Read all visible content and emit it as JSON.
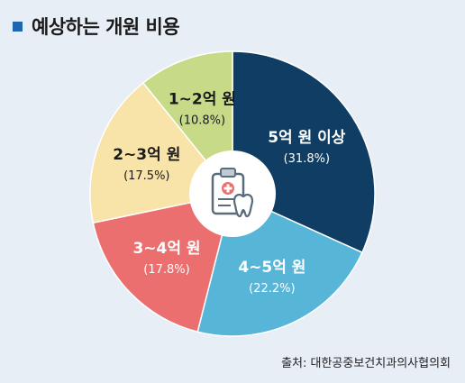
{
  "header": {
    "title": "예상하는 개원 비용",
    "marker_color": "#1e66b1"
  },
  "chart_data": {
    "type": "pie",
    "title": "예상하는 개원 비용",
    "slices": [
      {
        "label": "5억 원 이상",
        "value_text": "(31.8%)",
        "value": 31.8,
        "color": "#0f3d63",
        "text_color": "#ffffff"
      },
      {
        "label": "4~5억 원",
        "value_text": "(22.2%)",
        "value": 22.2,
        "color": "#57b6d8",
        "text_color": "#ffffff"
      },
      {
        "label": "3~4억 원",
        "value_text": "(17.8%)",
        "value": 17.8,
        "color": "#ec6f6f",
        "text_color": "#ffffff"
      },
      {
        "label": "2~3억 원",
        "value_text": "(17.5%)",
        "value": 17.5,
        "color": "#f8e3a9",
        "text_color": "#1a1a1a"
      },
      {
        "label": "1~2억 원",
        "value_text": "(10.8%)",
        "value": 10.8,
        "color": "#c6da88",
        "text_color": "#1a1a1a"
      }
    ],
    "center_icon": "dental-clipboard-icon",
    "legend": "none"
  },
  "footer": {
    "source": "출처: 대한공중보건치과의사협의회"
  }
}
